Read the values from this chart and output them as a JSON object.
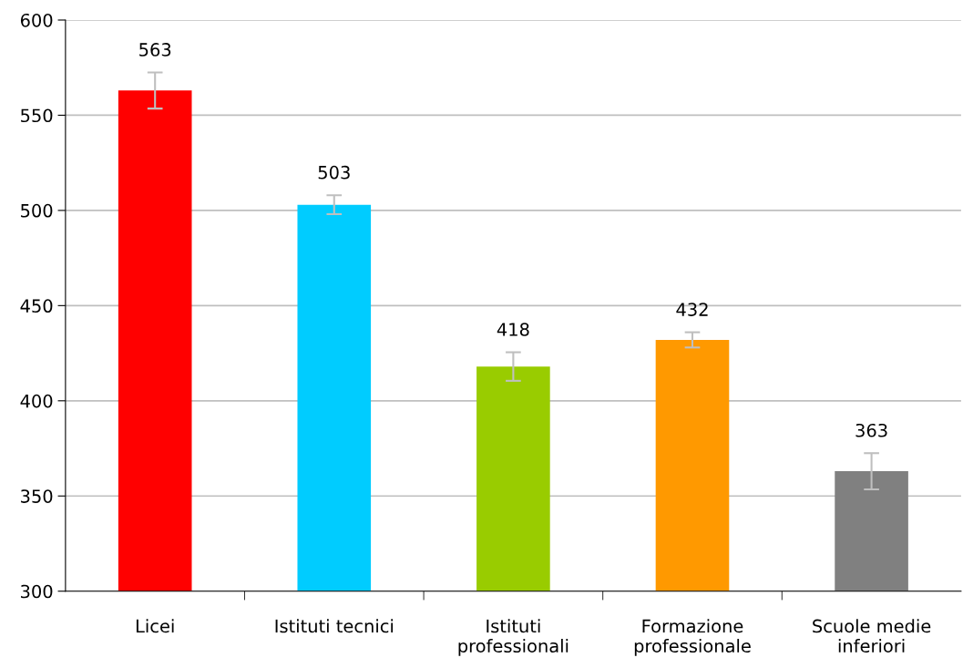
{
  "chart_data": {
    "type": "bar",
    "categories": [
      "Licei",
      "Istituti tecnici",
      "Istituti\nprofessionali",
      "Formazione\nprofessionale",
      "Scuole medie\ninferiori"
    ],
    "values": [
      563,
      503,
      418,
      432,
      363
    ],
    "colors": [
      "#ff0000",
      "#00ccff",
      "#99cc00",
      "#ff9900",
      "#808080"
    ],
    "errors": [
      9.5,
      5,
      7.5,
      4,
      9.5
    ],
    "data_labels": true,
    "ylim": [
      300,
      600
    ],
    "yticks": [
      300,
      350,
      400,
      450,
      500,
      550,
      600
    ],
    "grid": "y"
  }
}
